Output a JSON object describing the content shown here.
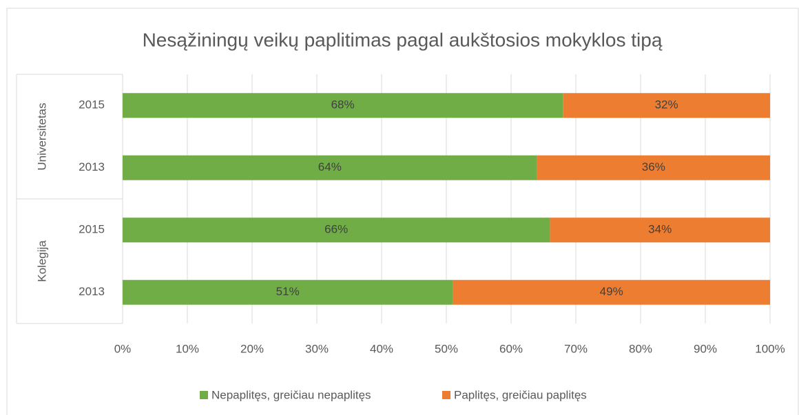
{
  "chart_data": {
    "type": "bar",
    "orientation": "horizontal",
    "stacked": true,
    "title": "Nesąžiningų veikų paplitimas pagal aukštosios mokyklos tipą",
    "groups": [
      {
        "label": "Universitetas",
        "categories": [
          "2015",
          "2013"
        ]
      },
      {
        "label": "Kolegija",
        "categories": [
          "2015",
          "2013"
        ]
      }
    ],
    "series": [
      {
        "name": "Nepaplitęs, greičiau nepaplitęs",
        "color": "#70ad47",
        "values": [
          68,
          64,
          66,
          51
        ],
        "value_labels": [
          "68%",
          "64%",
          "66%",
          "51%"
        ]
      },
      {
        "name": "Paplitęs, greičiau paplitęs",
        "color": "#ed7d31",
        "values": [
          32,
          36,
          34,
          49
        ],
        "value_labels": [
          "32%",
          "36%",
          "34%",
          "49%"
        ]
      }
    ],
    "xlim": [
      0,
      100
    ],
    "xticks": [
      {
        "value": 0,
        "label": "0%"
      },
      {
        "value": 10,
        "label": "10%"
      },
      {
        "value": 20,
        "label": "20%"
      },
      {
        "value": 30,
        "label": "30%"
      },
      {
        "value": 40,
        "label": "40%"
      },
      {
        "value": 50,
        "label": "50%"
      },
      {
        "value": 60,
        "label": "60%"
      },
      {
        "value": 70,
        "label": "70%"
      },
      {
        "value": 80,
        "label": "80%"
      },
      {
        "value": 90,
        "label": "90%"
      },
      {
        "value": 100,
        "label": "100%"
      }
    ],
    "grid": true,
    "legend": "bottom"
  }
}
